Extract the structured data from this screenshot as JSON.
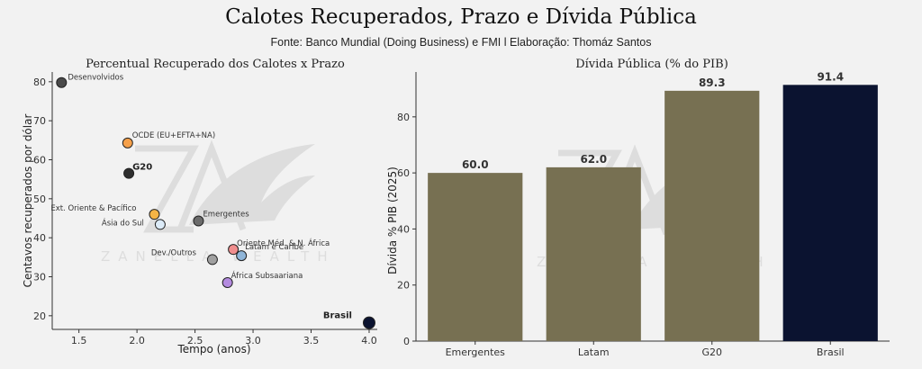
{
  "header": {
    "title": "Calotes Recuperados, Prazo e Dívida Pública",
    "subtitle": "Fonte: Banco Mundial (Doing Business) e FMI l Elaboração: Thomáz Santos"
  },
  "watermark": {
    "text": "ZANELLA WEALTH"
  },
  "chart_data": [
    {
      "type": "scatter",
      "title": "Percentual Recuperado dos Calotes x Prazo",
      "xlabel": "Tempo (anos)",
      "ylabel": "Centavos recuperados por dólar",
      "xlim": [
        1.27,
        4.07
      ],
      "ylim": [
        16.5,
        82.5
      ],
      "xticks": [
        1.5,
        2.0,
        2.5,
        3.0,
        3.5,
        4.0
      ],
      "yticks": [
        20,
        30,
        40,
        50,
        60,
        70,
        80
      ],
      "points": [
        {
          "label": "Desenvolvidos",
          "x": 1.35,
          "y": 79.8,
          "color": "#4a4a4a",
          "size": "large",
          "bold": false
        },
        {
          "label": "OCDE (EU+EFTA+NA)",
          "x": 1.92,
          "y": 64.3,
          "color": "#f5a04a",
          "size": "large",
          "bold": false
        },
        {
          "label": "G20",
          "x": 1.93,
          "y": 56.5,
          "color": "#2e2e2e",
          "size": "large",
          "bold": true
        },
        {
          "label": "Ext. Oriente & Pacífico",
          "x": 2.15,
          "y": 46.0,
          "color": "#f5b445",
          "size": "large",
          "bold": false
        },
        {
          "label": "Ásia do Sul",
          "x": 2.2,
          "y": 43.4,
          "color": "#dcebf8",
          "size": "large",
          "bold": false
        },
        {
          "label": "Emergentes",
          "x": 2.53,
          "y": 44.3,
          "color": "#6b6b6b",
          "size": "large",
          "bold": false
        },
        {
          "label": "Oriente Méd. & N. África",
          "x": 2.83,
          "y": 37.0,
          "color": "#f08e8e",
          "size": "large",
          "bold": false
        },
        {
          "label": "Latam e Caribe",
          "x": 2.9,
          "y": 35.4,
          "color": "#8fb5d8",
          "size": "large",
          "bold": false
        },
        {
          "label": "Dev./Outros",
          "x": 2.65,
          "y": 34.4,
          "color": "#a0a0a0",
          "size": "large",
          "bold": false
        },
        {
          "label": "África Subsaariana",
          "x": 2.78,
          "y": 28.5,
          "color": "#b48be0",
          "size": "large",
          "bold": false
        },
        {
          "label": "Brasil",
          "x": 4.0,
          "y": 18.2,
          "color": "#0b1330",
          "size": "xlarge",
          "bold": true
        }
      ]
    },
    {
      "type": "bar",
      "title": "Dívida Pública (% do PIB)",
      "xlabel": "",
      "ylabel": "Dívida % PIB (2025)",
      "ylim": [
        0,
        96
      ],
      "yticks": [
        0,
        20,
        40,
        60,
        80
      ],
      "categories": [
        "Emergentes",
        "Latam",
        "G20",
        "Brasil"
      ],
      "values": [
        60.0,
        62.0,
        89.3,
        91.4
      ],
      "value_labels": [
        "60.0",
        "62.0",
        "89.3",
        "91.4"
      ],
      "colors": [
        "#777052",
        "#777052",
        "#777052",
        "#0b1330"
      ]
    }
  ]
}
